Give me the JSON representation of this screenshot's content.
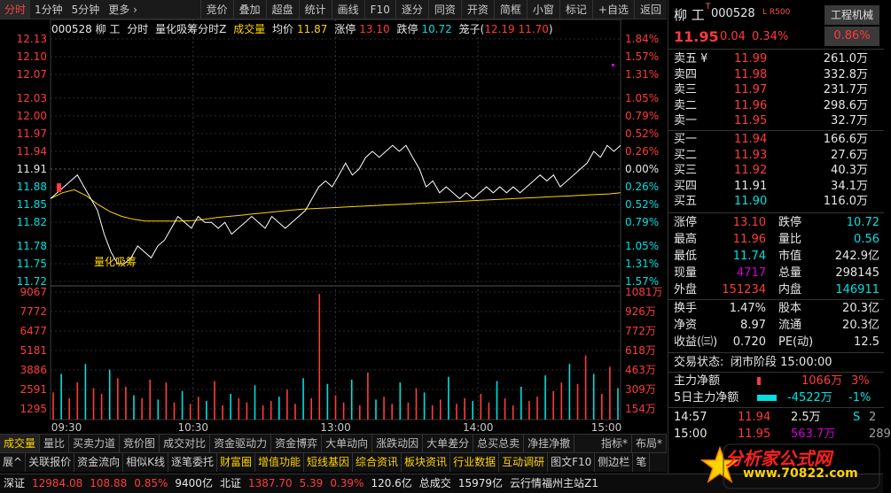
{
  "toolbar": {
    "left_tabs": [
      "分时",
      "1分钟",
      "5分钟",
      "更多 ›"
    ],
    "right_buttons": [
      "竞价",
      "叠加",
      "超盘",
      "统计",
      "画线",
      "F10",
      "逐分",
      "同资",
      "开资",
      "简框",
      "小窗",
      "标记",
      "+自选",
      "返回"
    ]
  },
  "info_line": {
    "code_name": "000528 柳 工",
    "mode": "分时",
    "indicator": "量化吸筹分时Z",
    "volume_label": "成交量",
    "avg_label": "均价",
    "avg_value": "11.87",
    "limit_up_label": "涨停",
    "limit_up_value": "13.10",
    "limit_down_label": "跌停",
    "limit_down_value": "10.72",
    "bracket_label": "笼子(",
    "bracket_values": "12.19 11.70",
    "bracket_close": ")"
  },
  "chart_data": {
    "type": "line",
    "prev_close": 11.91,
    "price_ticks": [
      "12.13",
      "12.10",
      "12.07",
      "12.03",
      "12.00",
      "11.97",
      "11.94",
      "11.91",
      "11.88",
      "11.85",
      "11.82",
      "11.78",
      "11.75",
      "11.72"
    ],
    "pct_ticks": [
      "1.84%",
      "1.57%",
      "1.31%",
      "1.05%",
      "0.79%",
      "0.52%",
      "0.26%",
      "0.00%",
      "0.26%",
      "0.52%",
      "0.79%",
      "1.05%",
      "1.31%",
      "1.57%"
    ],
    "volume_ticks": [
      "9067",
      "7772",
      "6477",
      "5181",
      "3886",
      "2591",
      "1295"
    ],
    "volume_right_ticks": [
      "1081万",
      "926万",
      "772万",
      "618万",
      "463万",
      "309万",
      "154万"
    ],
    "time_ticks": [
      "09:30",
      "10:30",
      "13:00",
      "14:00",
      "15:00"
    ],
    "annotation": "量化吸筹",
    "price": [
      11.86,
      11.87,
      11.88,
      11.89,
      11.9,
      11.88,
      11.86,
      11.84,
      11.8,
      11.77,
      11.75,
      11.75,
      11.76,
      11.78,
      11.77,
      11.76,
      11.78,
      11.79,
      11.81,
      11.83,
      11.82,
      11.81,
      11.83,
      11.82,
      11.82,
      11.81,
      11.82,
      11.8,
      11.81,
      11.82,
      11.83,
      11.82,
      11.81,
      11.83,
      11.82,
      11.81,
      11.82,
      11.83,
      11.84,
      11.86,
      11.88,
      11.89,
      11.88,
      11.9,
      11.92,
      11.9,
      11.91,
      11.93,
      11.94,
      11.93,
      11.94,
      11.95,
      11.94,
      11.95,
      11.93,
      11.91,
      11.88,
      11.89,
      11.87,
      11.88,
      11.87,
      11.86,
      11.87,
      11.86,
      11.87,
      11.88,
      11.87,
      11.88,
      11.87,
      11.88,
      11.87,
      11.88,
      11.89,
      11.9,
      11.89,
      11.9,
      11.88,
      11.89,
      11.9,
      11.91,
      11.92,
      11.94,
      11.93,
      11.95,
      11.94,
      11.95
    ],
    "avg": [
      11.86,
      11.87,
      11.875,
      11.865,
      11.85,
      11.838,
      11.83,
      11.825,
      11.822,
      11.822,
      11.822,
      11.822,
      11.823,
      11.825,
      11.828,
      11.83,
      11.832,
      11.834,
      11.836,
      11.838,
      11.84,
      11.842,
      11.843,
      11.844,
      11.845,
      11.846,
      11.847,
      11.848,
      11.849,
      11.85,
      11.851,
      11.852,
      11.853,
      11.854,
      11.855,
      11.856,
      11.857,
      11.858,
      11.859,
      11.86,
      11.861,
      11.862,
      11.863,
      11.864,
      11.865,
      11.866,
      11.867,
      11.868,
      11.87
    ],
    "volume": [
      1900,
      3200,
      1500,
      2600,
      3900,
      2200,
      1800,
      3500,
      2900,
      2300,
      1700,
      1500,
      2800,
      1400,
      2600,
      1200,
      2000,
      1100,
      1600,
      1300,
      2700,
      1000,
      1800,
      1500,
      1200,
      2400,
      1000,
      1300,
      1600,
      2100,
      1100,
      2900,
      1500,
      8800,
      2500,
      1700,
      1200,
      2800,
      1000,
      3300,
      1400,
      1600,
      1100,
      2600,
      1200,
      2200,
      1900,
      1000,
      1400,
      3000,
      1100,
      1500,
      1300,
      1800,
      1200,
      2700,
      1500,
      1000,
      2300,
      1300,
      1600,
      3100,
      2000,
      2600,
      3900,
      2500,
      4500,
      3200,
      1800,
      3700,
      2200
    ],
    "volume_max": 9067
  },
  "quote": {
    "name": "柳 工",
    "name_mark": "T",
    "code": "000528",
    "badge": "L R500",
    "industry": "工程机械",
    "price": "11.95",
    "change": "0.04",
    "change_pct": "0.34%",
    "industry_pct": "0.86%"
  },
  "order_book": {
    "asks": [
      {
        "label": "卖五 ¥",
        "price": "11.99",
        "vol": "261.0万"
      },
      {
        "label": "卖四",
        "price": "11.98",
        "vol": "332.8万"
      },
      {
        "label": "卖三",
        "price": "11.97",
        "vol": "231.7万"
      },
      {
        "label": "卖二",
        "price": "11.96",
        "vol": "298.6万"
      },
      {
        "label": "卖一",
        "price": "11.95",
        "vol": "32.7万"
      }
    ],
    "bids": [
      {
        "label": "买一",
        "price": "11.94",
        "vol": "166.6万"
      },
      {
        "label": "买二",
        "price": "11.93",
        "vol": "27.6万"
      },
      {
        "label": "买三",
        "price": "11.92",
        "vol": "40.3万"
      },
      {
        "label": "买四",
        "price": "11.91",
        "vol": "34.1万"
      },
      {
        "label": "买五",
        "price": "11.90",
        "vol": "116.0万"
      }
    ]
  },
  "stats1": {
    "zt_l": "涨停",
    "zt_v": "13.10",
    "dt_l": "跌停",
    "dt_v": "10.72",
    "zg_l": "最高",
    "zg_v": "11.96",
    "lb_l": "量比",
    "lb_v": "0.56",
    "zd_l": "最低",
    "zd_v": "11.74",
    "sz_l": "市值",
    "sz_v": "242.9亿",
    "xl_l": "现量",
    "xl_v": "4717",
    "zl_l": "总量",
    "zl_v": "298145",
    "wp_l": "外盘",
    "wp_v": "151234",
    "np_l": "内盘",
    "np_v": "146911"
  },
  "stats2": {
    "hs_l": "换手",
    "hs_v": "1.47%",
    "gb_l": "股本",
    "gb_v": "20.3亿",
    "jz_l": "净资",
    "jz_v": "8.97",
    "lt_l": "流通",
    "lt_v": "20.3亿",
    "sy_l": "收益(㈢)",
    "sy_v": "0.720",
    "pe_l": "PE(动)",
    "pe_v": "12.5"
  },
  "trade_status": {
    "label": "交易状态:",
    "value": "闭市阶段 15:00:00"
  },
  "money": {
    "main_l": "主力净额",
    "main_v": "1066万",
    "main_p": "3%",
    "five_l": "5日主力净额",
    "five_v": "-4522万",
    "five_p": "-1%"
  },
  "ticks": [
    {
      "time": "14:57",
      "price": "11.94",
      "vol": "2.5万",
      "flag": "S",
      "n": "2"
    },
    {
      "time": "15:00",
      "price": "11.95",
      "vol": "563.7万",
      "flag": "",
      "n": "289"
    }
  ],
  "tabs1": [
    "成交量",
    "量比",
    "买卖力道",
    "竞价图",
    "成交对比",
    "资金驱动力",
    "资金博弈",
    "大单动向",
    "涨跌动因",
    "大单差分",
    "总买总卖",
    "净挂净撤",
    "指标*",
    "布局*"
  ],
  "tabs2": [
    "展^",
    "关联报价",
    "资金流向",
    "相似K线",
    "逐笔委托",
    "财富圈",
    "增值功能",
    "短线基因",
    "综合资讯",
    "板块资讯",
    "行业数据",
    "互动调研",
    "图文F10",
    "侧边栏",
    "笔"
  ],
  "status": {
    "sz_label": "深证",
    "sz_val": "12984.08",
    "sz_chg": "108.88",
    "sz_pct": "0.85%",
    "sz_amt": "9400亿",
    "bz_label": "北证",
    "bz_val": "1387.70",
    "bz_chg": "5.39",
    "bz_pct": "0.39%",
    "bz_amt": "120.6亿",
    "total_label": "总成交",
    "total_val": "15979亿",
    "site": "云行情福州主站Z1"
  },
  "logo": {
    "text": "分析家公式网",
    "url": "www.70822.com"
  }
}
